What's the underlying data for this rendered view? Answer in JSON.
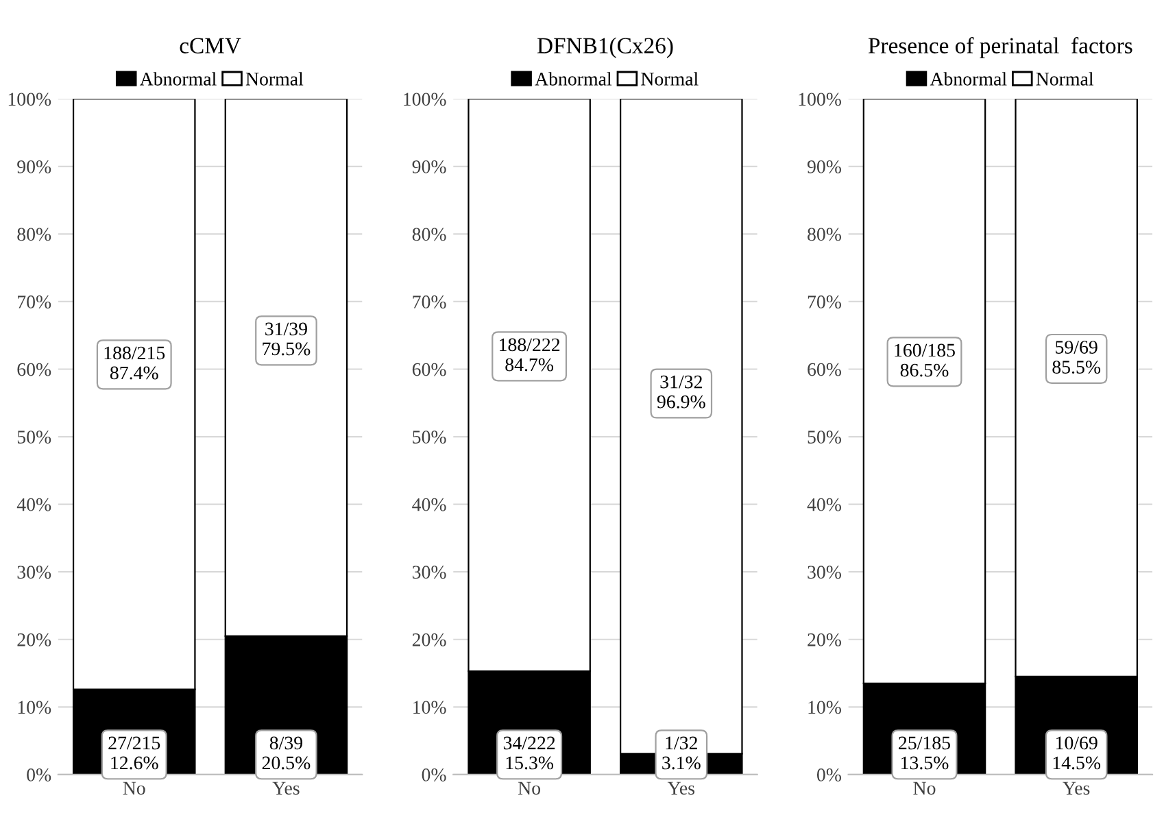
{
  "chart_data": [
    {
      "type": "bar",
      "stacked": true,
      "title": "cCMV",
      "categories": [
        "No",
        "Yes"
      ],
      "ylim": [
        0,
        100
      ],
      "yticks": [
        {
          "value": 0,
          "label": "0%"
        },
        {
          "value": 10,
          "label": "10%"
        },
        {
          "value": 20,
          "label": "20%"
        },
        {
          "value": 30,
          "label": "30%"
        },
        {
          "value": 40,
          "label": "40%"
        },
        {
          "value": 50,
          "label": "50%"
        },
        {
          "value": 60,
          "label": "60%"
        },
        {
          "value": 70,
          "label": "70%"
        },
        {
          "value": 80,
          "label": "80%"
        },
        {
          "value": 90,
          "label": "90%"
        },
        {
          "value": 100,
          "label": "100%"
        }
      ],
      "grid": "y",
      "legend": "top",
      "series": [
        {
          "name": "Abnormal",
          "color": "#000000",
          "values": [
            12.6,
            20.5
          ],
          "value_labels": [
            "27/215\n12.6%",
            "8/39\n20.5%"
          ]
        },
        {
          "name": "Normal",
          "color": "#ffffff",
          "values": [
            87.4,
            79.5
          ],
          "value_labels": [
            "188/215\n87.4%",
            "31/39\n79.5%"
          ]
        }
      ]
    },
    {
      "type": "bar",
      "stacked": true,
      "title": "DFNB1(Cx26)",
      "categories": [
        "No",
        "Yes"
      ],
      "ylim": [
        0,
        100
      ],
      "yticks": [
        {
          "value": 0,
          "label": "0%"
        },
        {
          "value": 10,
          "label": "10%"
        },
        {
          "value": 20,
          "label": "20%"
        },
        {
          "value": 30,
          "label": "30%"
        },
        {
          "value": 40,
          "label": "40%"
        },
        {
          "value": 50,
          "label": "50%"
        },
        {
          "value": 60,
          "label": "60%"
        },
        {
          "value": 70,
          "label": "70%"
        },
        {
          "value": 80,
          "label": "80%"
        },
        {
          "value": 90,
          "label": "90%"
        },
        {
          "value": 100,
          "label": "100%"
        }
      ],
      "grid": "y",
      "legend": "top",
      "series": [
        {
          "name": "Abnormal",
          "color": "#000000",
          "values": [
            15.3,
            3.1
          ],
          "value_labels": [
            "34/222\n15.3%",
            "1/32\n3.1%"
          ]
        },
        {
          "name": "Normal",
          "color": "#ffffff",
          "values": [
            84.7,
            96.9
          ],
          "value_labels": [
            "188/222\n84.7%",
            "31/32\n96.9%"
          ]
        }
      ]
    },
    {
      "type": "bar",
      "stacked": true,
      "title": "Presence of perinatal  factors",
      "categories": [
        "No",
        "Yes"
      ],
      "ylim": [
        0,
        100
      ],
      "yticks": [
        {
          "value": 0,
          "label": "0%"
        },
        {
          "value": 10,
          "label": "10%"
        },
        {
          "value": 20,
          "label": "20%"
        },
        {
          "value": 30,
          "label": "30%"
        },
        {
          "value": 40,
          "label": "40%"
        },
        {
          "value": 50,
          "label": "50%"
        },
        {
          "value": 60,
          "label": "60%"
        },
        {
          "value": 70,
          "label": "70%"
        },
        {
          "value": 80,
          "label": "80%"
        },
        {
          "value": 90,
          "label": "90%"
        },
        {
          "value": 100,
          "label": "100%"
        }
      ],
      "grid": "y",
      "legend": "top",
      "series": [
        {
          "name": "Abnormal",
          "color": "#000000",
          "values": [
            13.5,
            14.5
          ],
          "value_labels": [
            "25/185\n13.5%",
            "10/69\n14.5%"
          ]
        },
        {
          "name": "Normal",
          "color": "#ffffff",
          "values": [
            86.5,
            85.5
          ],
          "value_labels": [
            "160/185\n86.5%",
            "59/69\n85.5%"
          ]
        }
      ]
    }
  ]
}
